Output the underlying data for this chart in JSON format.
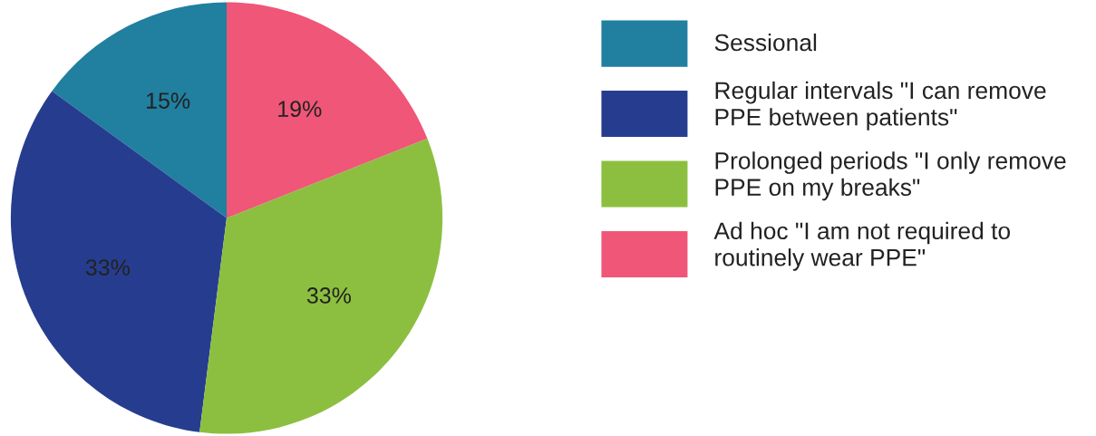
{
  "chart_data": {
    "type": "pie",
    "categories": [
      "Sessional",
      "Regular intervals \"I can remove PPE between patients\"",
      "Prolonged periods \"I only remove PPE on my breaks\"",
      "Ad hoc \"I am not required to routinely wear PPE\""
    ],
    "values": [
      15,
      33,
      33,
      19
    ],
    "value_labels": [
      "15%",
      "33%",
      "33%",
      "19%"
    ],
    "colors": [
      "#217fa0",
      "#263d8f",
      "#8cbf3f",
      "#ef5677"
    ],
    "legend": "right"
  }
}
